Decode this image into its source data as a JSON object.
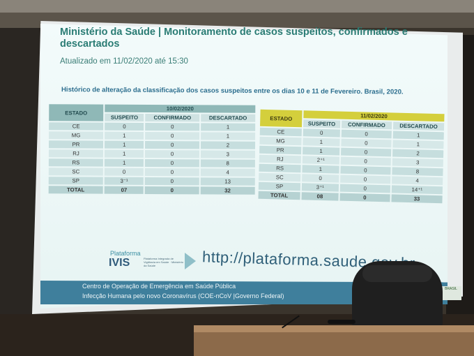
{
  "slide": {
    "title_line1": "Ministério da Saúde | Monitoramento de casos suspeitos, confirmados e",
    "title_line2": "descartados",
    "updated": "Atualizado em 11/02/2020 até 15:30",
    "section_title": "Histórico de alteração da classificação dos casos suspeitos entre os dias 10 e 11 de Fevereiro. Brasil, 2020."
  },
  "tables": {
    "estado_header": "ESTADO",
    "col_suspeito": "SUSPEITO",
    "col_confirmado": "CONFIRMADO",
    "col_descartado": "DESCARTADO",
    "total_label": "TOTAL",
    "date1": "10/02/2020",
    "date2": "11/02/2020",
    "rows1": [
      {
        "estado": "CE",
        "suspeito": "0",
        "confirmado": "0",
        "descartado": "1"
      },
      {
        "estado": "MG",
        "suspeito": "1",
        "confirmado": "0",
        "descartado": "1"
      },
      {
        "estado": "PR",
        "suspeito": "1",
        "confirmado": "0",
        "descartado": "2"
      },
      {
        "estado": "RJ",
        "suspeito": "1",
        "confirmado": "0",
        "descartado": "3"
      },
      {
        "estado": "RS",
        "suspeito": "1",
        "confirmado": "0",
        "descartado": "8"
      },
      {
        "estado": "SC",
        "suspeito": "0",
        "confirmado": "0",
        "descartado": "4"
      },
      {
        "estado": "SP",
        "suspeito": "3⁻¹",
        "confirmado": "0",
        "descartado": "13"
      }
    ],
    "total1": {
      "suspeito": "07",
      "confirmado": "0",
      "descartado": "32"
    },
    "rows2": [
      {
        "estado": "CE",
        "suspeito": "0",
        "confirmado": "0",
        "descartado": "1"
      },
      {
        "estado": "MG",
        "suspeito": "1",
        "confirmado": "0",
        "descartado": "1"
      },
      {
        "estado": "PR",
        "suspeito": "1",
        "confirmado": "0",
        "descartado": "2"
      },
      {
        "estado": "RJ",
        "suspeito": "2⁺¹",
        "confirmado": "0",
        "descartado": "3"
      },
      {
        "estado": "RS",
        "suspeito": "1",
        "confirmado": "0",
        "descartado": "8"
      },
      {
        "estado": "SC",
        "suspeito": "0",
        "confirmado": "0",
        "descartado": "4"
      },
      {
        "estado": "SP",
        "suspeito": "3⁺¹",
        "confirmado": "0",
        "descartado": "14⁺¹"
      }
    ],
    "total2": {
      "suspeito": "08",
      "confirmado": "0",
      "descartado": "33"
    }
  },
  "branding": {
    "plataforma": "Plataforma",
    "ivis": "IVIS",
    "ivis_desc": "Plataforma Integrada de Vigilância em Saúde · Ministério da Saúde",
    "url": "http://plataforma.saude.gov.br",
    "gov_label": "BRASIL"
  },
  "footer": {
    "line1": "Centro de Operação de Emergência em Saúde Pública",
    "line2": "Infecção Humana pelo novo Coronavírus (COE-nCoV |Governo Federal)"
  },
  "colors": {
    "title": "#2a7c74",
    "header_teal": "#8fb8b7",
    "header_yellow": "#d4cf3c",
    "footer_blue": "#3f7f9c"
  }
}
